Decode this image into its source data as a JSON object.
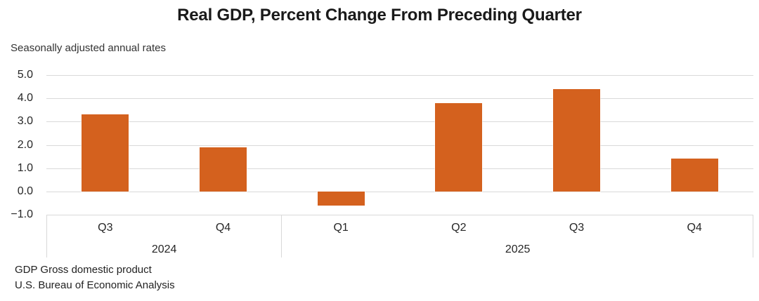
{
  "footer": {
    "line1": "GDP Gross domestic product",
    "line2": "U.S. Bureau of Economic Analysis"
  },
  "colors": {
    "bar": "#D4611E",
    "gridline": "#D9D9D9",
    "axis_text": "#262626",
    "title_text": "#1A1A1A"
  },
  "chart_data": {
    "type": "bar",
    "title": "Real GDP, Percent Change From Preceding Quarter",
    "subtitle": "Seasonally adjusted annual rates",
    "categories": [
      "Q3",
      "Q4",
      "Q1",
      "Q2",
      "Q3",
      "Q4"
    ],
    "values": [
      3.3,
      1.9,
      -0.6,
      3.8,
      4.4,
      1.4
    ],
    "year_groups": [
      {
        "label": "2024",
        "span": 2
      },
      {
        "label": "2025",
        "span": 4
      }
    ],
    "ytick_labels": [
      "5.0",
      "4.0",
      "3.0",
      "2.0",
      "1.0",
      "0.0",
      "−1.0"
    ],
    "ytick_values": [
      5,
      4,
      3,
      2,
      1,
      0,
      -1
    ],
    "ylim": [
      -1.0,
      5.0
    ],
    "xlabel": "",
    "ylabel": "",
    "grid": true,
    "legend": "none",
    "bar_color": "#D4611E"
  }
}
